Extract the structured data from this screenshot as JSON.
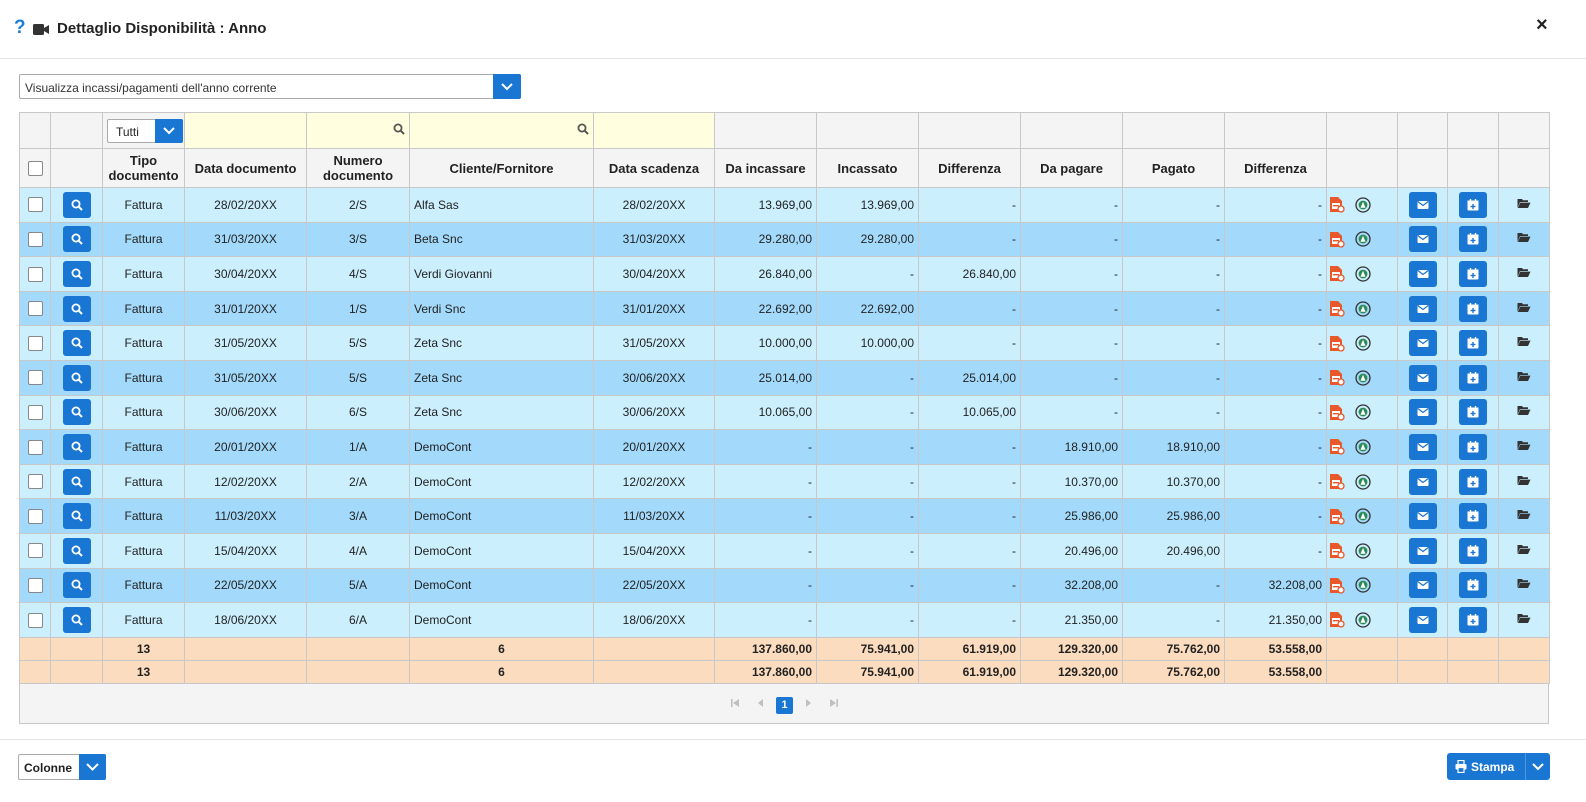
{
  "header": {
    "title": "Dettaglio Disponibilità : Anno",
    "help_glyph": "?",
    "close_glyph": "×"
  },
  "period_select": {
    "value": "Visualizza incassi/pagamenti dell'anno corrente"
  },
  "filter": {
    "tipo_value": "Tutti"
  },
  "columns": {
    "tipo": "Tipo documento",
    "data_doc": "Data documento",
    "numero": "Numero documento",
    "cliente": "Cliente/Fornitore",
    "scadenza": "Data scadenza",
    "da_incassare": "Da incassare",
    "incassato": "Incassato",
    "differenza1": "Differenza",
    "da_pagare": "Da pagare",
    "pagato": "Pagato",
    "differenza2": "Differenza"
  },
  "rows": [
    {
      "tipo": "Fattura",
      "data": "28/02/20XX",
      "num": "2/S",
      "cli": "Alfa Sas",
      "scad": "28/02/20XX",
      "din": "13.969,00",
      "inc": "13.969,00",
      "d1": "-",
      "dp": "-",
      "pag": "-",
      "d2": "-"
    },
    {
      "tipo": "Fattura",
      "data": "31/03/20XX",
      "num": "3/S",
      "cli": "Beta Snc",
      "scad": "31/03/20XX",
      "din": "29.280,00",
      "inc": "29.280,00",
      "d1": "-",
      "dp": "-",
      "pag": "-",
      "d2": "-"
    },
    {
      "tipo": "Fattura",
      "data": "30/04/20XX",
      "num": "4/S",
      "cli": "Verdi Giovanni",
      "scad": "30/04/20XX",
      "din": "26.840,00",
      "inc": "-",
      "d1": "26.840,00",
      "dp": "-",
      "pag": "-",
      "d2": "-"
    },
    {
      "tipo": "Fattura",
      "data": "31/01/20XX",
      "num": "1/S",
      "cli": "Verdi Snc",
      "scad": "31/01/20XX",
      "din": "22.692,00",
      "inc": "22.692,00",
      "d1": "-",
      "dp": "-",
      "pag": "-",
      "d2": "-"
    },
    {
      "tipo": "Fattura",
      "data": "31/05/20XX",
      "num": "5/S",
      "cli": "Zeta Snc",
      "scad": "31/05/20XX",
      "din": "10.000,00",
      "inc": "10.000,00",
      "d1": "-",
      "dp": "-",
      "pag": "-",
      "d2": "-"
    },
    {
      "tipo": "Fattura",
      "data": "31/05/20XX",
      "num": "5/S",
      "cli": "Zeta Snc",
      "scad": "30/06/20XX",
      "din": "25.014,00",
      "inc": "-",
      "d1": "25.014,00",
      "dp": "-",
      "pag": "-",
      "d2": "-"
    },
    {
      "tipo": "Fattura",
      "data": "30/06/20XX",
      "num": "6/S",
      "cli": "Zeta Snc",
      "scad": "30/06/20XX",
      "din": "10.065,00",
      "inc": "-",
      "d1": "10.065,00",
      "dp": "-",
      "pag": "-",
      "d2": "-"
    },
    {
      "tipo": "Fattura",
      "data": "20/01/20XX",
      "num": "1/A",
      "cli": "DemoCont",
      "scad": "20/01/20XX",
      "din": "-",
      "inc": "-",
      "d1": "-",
      "dp": "18.910,00",
      "pag": "18.910,00",
      "d2": "-"
    },
    {
      "tipo": "Fattura",
      "data": "12/02/20XX",
      "num": "2/A",
      "cli": "DemoCont",
      "scad": "12/02/20XX",
      "din": "-",
      "inc": "-",
      "d1": "-",
      "dp": "10.370,00",
      "pag": "10.370,00",
      "d2": "-"
    },
    {
      "tipo": "Fattura",
      "data": "11/03/20XX",
      "num": "3/A",
      "cli": "DemoCont",
      "scad": "11/03/20XX",
      "din": "-",
      "inc": "-",
      "d1": "-",
      "dp": "25.986,00",
      "pag": "25.986,00",
      "d2": "-"
    },
    {
      "tipo": "Fattura",
      "data": "15/04/20XX",
      "num": "4/A",
      "cli": "DemoCont",
      "scad": "15/04/20XX",
      "din": "-",
      "inc": "-",
      "d1": "-",
      "dp": "20.496,00",
      "pag": "20.496,00",
      "d2": "-"
    },
    {
      "tipo": "Fattura",
      "data": "22/05/20XX",
      "num": "5/A",
      "cli": "DemoCont",
      "scad": "22/05/20XX",
      "din": "-",
      "inc": "-",
      "d1": "-",
      "dp": "32.208,00",
      "pag": "-",
      "d2": "32.208,00"
    },
    {
      "tipo": "Fattura",
      "data": "18/06/20XX",
      "num": "6/A",
      "cli": "DemoCont",
      "scad": "18/06/20XX",
      "din": "-",
      "inc": "-",
      "d1": "-",
      "dp": "21.350,00",
      "pag": "-",
      "d2": "21.350,00"
    }
  ],
  "totals": [
    {
      "count": "13",
      "cli_count": "6",
      "din": "137.860,00",
      "inc": "75.941,00",
      "d1": "61.919,00",
      "dp": "129.320,00",
      "pag": "75.762,00",
      "d2": "53.558,00"
    },
    {
      "count": "13",
      "cli_count": "6",
      "din": "137.860,00",
      "inc": "75.941,00",
      "d1": "61.919,00",
      "dp": "129.320,00",
      "pag": "75.762,00",
      "d2": "53.558,00"
    }
  ],
  "pager": {
    "current": "1"
  },
  "footer": {
    "colonne_label": "Colonne",
    "stampa_label": "Stampa"
  },
  "colors": {
    "accent": "#1976d2",
    "row_light": "#cbeffd",
    "row_dark": "#a3dafb",
    "total": "#fcdcbf",
    "filter_yellow": "#ffffdf",
    "pdf_orange": "#e8582a"
  }
}
